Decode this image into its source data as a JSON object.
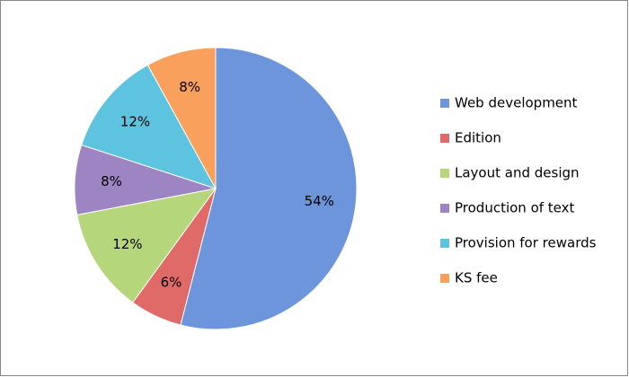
{
  "chart_data": {
    "type": "pie",
    "categories": [
      "Web development",
      "Edition",
      "Layout and design",
      "Production of text",
      "Provision for rewards",
      "KS fee"
    ],
    "values": [
      54,
      6,
      12,
      8,
      12,
      8
    ],
    "value_labels": [
      "54%",
      "6%",
      "12%",
      "8%",
      "12%",
      "8%"
    ],
    "colors": [
      "#6c95dc",
      "#e06a68",
      "#b6d67c",
      "#9d84c2",
      "#5dc3df",
      "#f8a05c"
    ],
    "legend": "right"
  }
}
